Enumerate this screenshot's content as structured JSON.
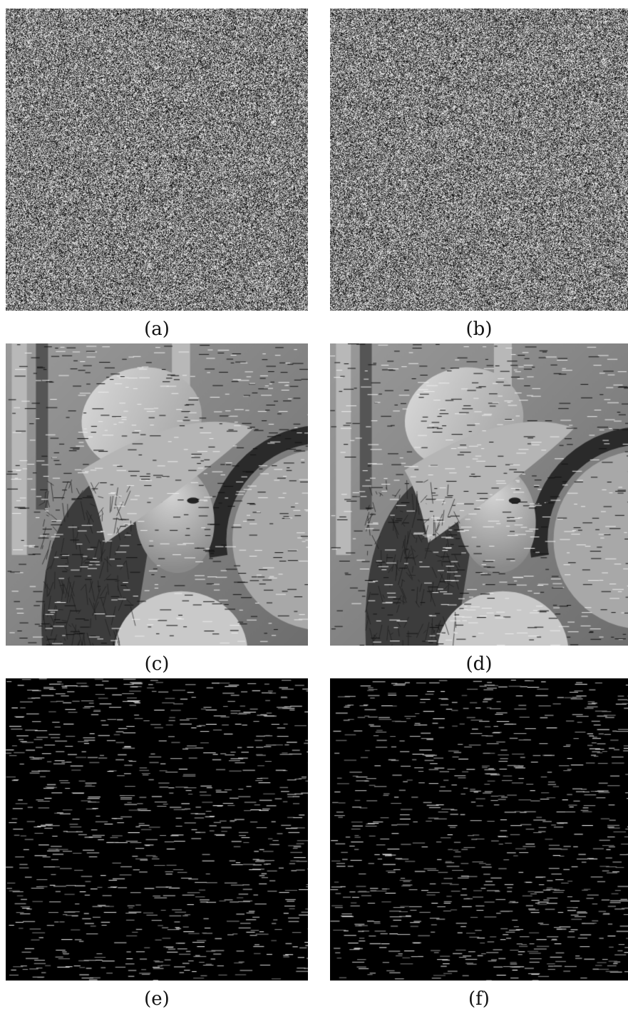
{
  "figure": {
    "panels": [
      {
        "label": "(a)",
        "kind": "noise",
        "seed": 11
      },
      {
        "label": "(b)",
        "kind": "noise",
        "seed": 23
      },
      {
        "label": "(c)",
        "kind": "portrait",
        "seed": 37
      },
      {
        "label": "(d)",
        "kind": "portrait",
        "seed": 51
      },
      {
        "label": "(e)",
        "kind": "dashes",
        "seed": 67
      },
      {
        "label": "(f)",
        "kind": "dashes",
        "seed": 83
      }
    ]
  }
}
